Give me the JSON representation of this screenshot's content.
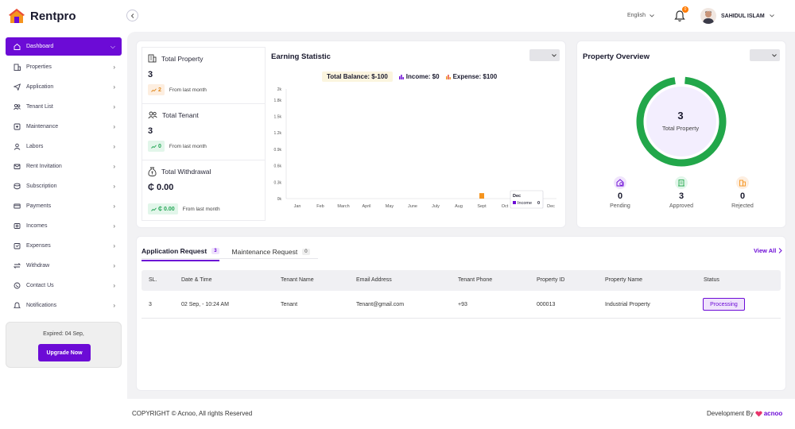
{
  "app": {
    "name": "Rentpro"
  },
  "sidebar": {
    "items": [
      {
        "label": "Dashboard",
        "icon": "home-icon",
        "active": true
      },
      {
        "label": "Properties",
        "icon": "building-icon"
      },
      {
        "label": "Application",
        "icon": "send-icon"
      },
      {
        "label": "Tenant List",
        "icon": "users-icon"
      },
      {
        "label": "Maintenance",
        "icon": "tools-icon"
      },
      {
        "label": "Labors",
        "icon": "user-icon"
      },
      {
        "label": "Rent Invitation",
        "icon": "invite-icon"
      },
      {
        "label": "Subscription",
        "icon": "subscription-icon"
      },
      {
        "label": "Payments",
        "icon": "payment-icon"
      },
      {
        "label": "Incomes",
        "icon": "income-icon"
      },
      {
        "label": "Expenses",
        "icon": "expense-icon"
      },
      {
        "label": "Withdraw",
        "icon": "withdraw-icon"
      },
      {
        "label": "Contact Us",
        "icon": "contact-icon"
      },
      {
        "label": "Notifications",
        "icon": "bell-icon"
      }
    ],
    "expired_text": "Expired: 04 Sep,",
    "upgrade_label": "Upgrade Now"
  },
  "header": {
    "language": "English",
    "notification_count": "0",
    "user_name": "SAHIDUL ISLAM"
  },
  "stats": {
    "property": {
      "title": "Total Property",
      "value": "3",
      "change": "2",
      "foot": "From last month"
    },
    "tenant": {
      "title": "Total Tenant",
      "value": "3",
      "change": "0",
      "foot": "From last month"
    },
    "withdrawal": {
      "title": "Total Withdrawal",
      "value": "₵ 0.00",
      "change": "₵ 0.00",
      "foot": "From last month"
    }
  },
  "earning": {
    "title": "Earning Statistic",
    "total_balance": "Total Balance: $-100",
    "income": "Income: $0",
    "expense": "Expense: $100",
    "tooltip_month": "Dec",
    "tooltip_income": "Income",
    "tooltip_value": "0"
  },
  "chart_data": {
    "type": "bar",
    "categories": [
      "Jan",
      "Feb",
      "March",
      "April",
      "May",
      "June",
      "July",
      "Aug",
      "Sept",
      "Oct",
      "Nov",
      "Dec"
    ],
    "series": [
      {
        "name": "Income",
        "values": [
          0,
          0,
          0,
          0,
          0,
          0,
          0,
          0,
          0,
          0,
          0,
          0
        ],
        "color": "#6c0bd6"
      },
      {
        "name": "Expense",
        "values": [
          0,
          0,
          0,
          0,
          0,
          0,
          0,
          0,
          100,
          0,
          0,
          0
        ],
        "color": "#f5941e"
      }
    ],
    "y_ticks": [
      "0k",
      "0.3k",
      "0.6k",
      "0.9k",
      "1.2k",
      "1.5k",
      "1.8k",
      "2k"
    ],
    "ylim": [
      0,
      2000
    ]
  },
  "overview": {
    "title": "Property Overview",
    "total_value": "3",
    "total_label": "Total Property",
    "pending": {
      "value": "0",
      "label": "Pending"
    },
    "approved": {
      "value": "3",
      "label": "Approved"
    },
    "rejected": {
      "value": "0",
      "label": "Rejected"
    },
    "colors": {
      "ring": "#22a74a",
      "pending": "#6c0bd6",
      "approved": "#22a74a",
      "rejected": "#f5941e"
    }
  },
  "requests": {
    "tabs": [
      {
        "label": "Application Request",
        "count": "3",
        "active": true
      },
      {
        "label": "Maintenance Request",
        "count": "0"
      }
    ],
    "view_all": "View All",
    "columns": [
      "SL.",
      "Date & Time",
      "Tenant Name",
      "Email Address",
      "Tenant Phone",
      "Property ID",
      "Property Name",
      "Status"
    ],
    "rows": [
      {
        "sl": "3",
        "datetime": "02 Sep, - 10:24 AM",
        "tenant": "Tenant",
        "email": "Tenant@gmail.com",
        "phone": "+93",
        "property_id": "000013",
        "property_name": "Industrial Property",
        "status": "Processing"
      }
    ]
  },
  "footer": {
    "copyright": "COPYRIGHT © Acnoo, All rights Reserved",
    "developed_by": "Development By",
    "brand": "acnoo"
  }
}
